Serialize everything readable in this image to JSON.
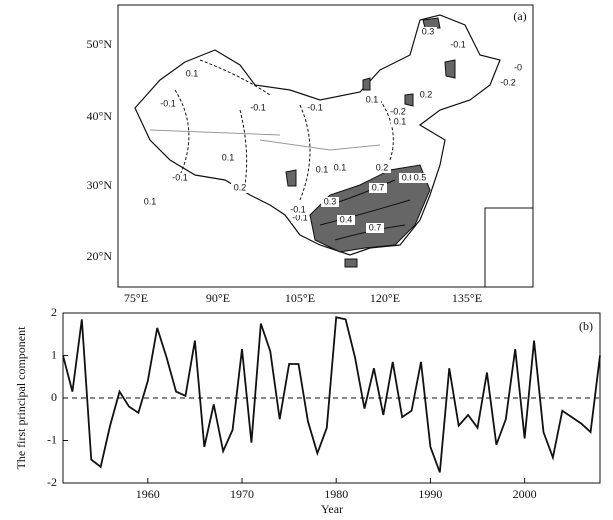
{
  "map": {
    "panel_label": "(a)",
    "lat_labels": [
      "50°N",
      "40°N",
      "30°N",
      "20°N"
    ],
    "lon_labels": [
      "75°E",
      "90°E",
      "105°E",
      "120°E",
      "135°E"
    ],
    "contour_labels": [
      "0.3",
      "-0.1",
      "-0",
      "-0.2",
      "0.2",
      "0.1",
      "-0.1",
      "-0.1",
      "-0.1",
      "0.1",
      "-0.2",
      "0.1",
      "-0.1",
      "0.2",
      "0.1",
      "-0.1",
      "0.1",
      "0.2",
      "0.6",
      "0.7",
      "0.5",
      "0.3",
      "0.4",
      "0.7",
      "-0.1",
      "0.1",
      "0.1"
    ]
  },
  "chart_data": {
    "type": "line",
    "panel_label": "(b)",
    "y_label": "The first principal component",
    "x_label": "Year",
    "x": [
      1951,
      1952,
      1953,
      1954,
      1955,
      1956,
      1957,
      1958,
      1959,
      1960,
      1961,
      1962,
      1963,
      1964,
      1965,
      1966,
      1967,
      1968,
      1969,
      1970,
      1971,
      1972,
      1973,
      1974,
      1975,
      1976,
      1977,
      1978,
      1979,
      1980,
      1981,
      1982,
      1983,
      1984,
      1985,
      1986,
      1987,
      1988,
      1989,
      1990,
      1991,
      1992,
      1993,
      1994,
      1995,
      1996,
      1997,
      1998,
      1999,
      2000,
      2001,
      2002,
      2003,
      2004,
      2005,
      2006,
      2007,
      2008
    ],
    "series": [
      {
        "color": "#111111",
        "values": [
          1.0,
          0.15,
          1.85,
          -1.45,
          -1.62,
          -0.65,
          0.15,
          -0.2,
          -0.35,
          0.4,
          1.65,
          0.95,
          0.15,
          0.05,
          1.35,
          -1.15,
          -0.15,
          -1.25,
          -0.75,
          1.15,
          -1.05,
          1.75,
          1.1,
          -0.5,
          0.8,
          0.8,
          -0.55,
          -1.3,
          -0.7,
          1.9,
          1.85,
          0.95,
          -0.25,
          0.7,
          -0.4,
          0.85,
          -0.45,
          -0.3,
          0.85,
          -1.15,
          -1.75,
          0.7,
          -0.65,
          -0.4,
          -0.7,
          0.6,
          -1.1,
          -0.5,
          1.15,
          -0.95,
          1.35,
          -0.8,
          -1.4,
          -0.3,
          -0.45,
          -0.6,
          -0.8,
          1.0
        ]
      }
    ],
    "reference_line": 0,
    "xlim": [
      1951,
      2008
    ],
    "ylim": [
      -2,
      2
    ],
    "xticks": [
      1960,
      1970,
      1980,
      1990,
      2000
    ],
    "yticks": [
      -2,
      -1,
      0,
      1,
      2
    ]
  }
}
